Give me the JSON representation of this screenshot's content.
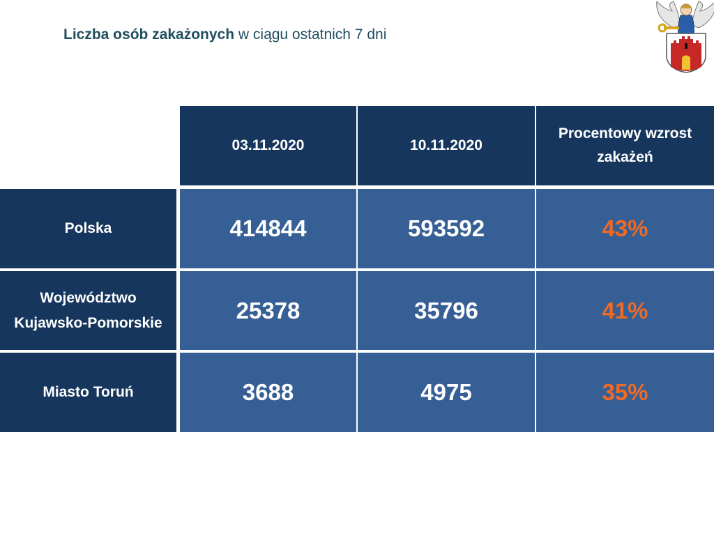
{
  "title": {
    "bold": "Liczba osób zakażonych",
    "rest": " w ciągu ostatnich 7 dni"
  },
  "logo": {
    "icon": "torun-coat-of-arms"
  },
  "colors": {
    "header_bg": "#17365d",
    "cell_bg": "#365f95",
    "percent_text": "#f06a25",
    "title_text": "#1f4e5f"
  },
  "table": {
    "headers": [
      "03.11.2020",
      "10.11.2020",
      "Procentowy wzrost zakażeń"
    ],
    "rows": [
      {
        "label": "Polska",
        "values": [
          "414844",
          "593592"
        ],
        "percent": "43%"
      },
      {
        "label": "Województwo Kujawsko-Pomorskie",
        "values": [
          "25378",
          "35796"
        ],
        "percent": "41%"
      },
      {
        "label": "Miasto Toruń",
        "values": [
          "3688",
          "4975"
        ],
        "percent": "35%"
      }
    ]
  }
}
